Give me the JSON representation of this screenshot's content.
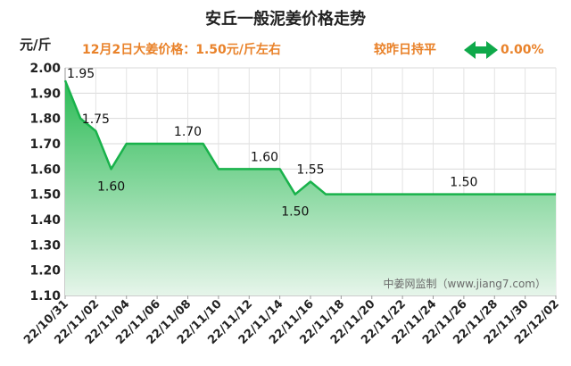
{
  "title": "安丘一般泥姜价格走势",
  "unit_label": "元/斤",
  "price_note": "12月2日大姜价格：1.50元/斤左右",
  "compare": {
    "label": "较昨日持平",
    "percent": "0.00%",
    "icon": "double-arrow-icon"
  },
  "watermark": "中姜网监制（www.jiang7.com）",
  "colors": {
    "accent_orange": "#e9822a",
    "line_green": "#19b24b",
    "arrow_green": "#0fa94a",
    "title": "#222222"
  },
  "chart_data": {
    "type": "area",
    "title": "安丘一般泥姜价格走势",
    "ylabel": "元/斤",
    "xlabel": "",
    "ylim": [
      1.1,
      2.0
    ],
    "y_ticks": [
      "1.10",
      "1.20",
      "1.30",
      "1.40",
      "1.50",
      "1.60",
      "1.70",
      "1.80",
      "1.90",
      "2.00"
    ],
    "x_ticks": [
      "22/10/31",
      "22/11/02",
      "22/11/04",
      "22/11/06",
      "22/11/08",
      "22/11/10",
      "22/11/12",
      "22/11/14",
      "22/11/16",
      "22/11/18",
      "22/11/20",
      "22/11/22",
      "22/11/24",
      "22/11/26",
      "22/11/28",
      "22/11/30",
      "22/12/02"
    ],
    "x": [
      "22/10/31",
      "22/11/01",
      "22/11/02",
      "22/11/03",
      "22/11/04",
      "22/11/05",
      "22/11/06",
      "22/11/07",
      "22/11/08",
      "22/11/09",
      "22/11/10",
      "22/11/11",
      "22/11/12",
      "22/11/13",
      "22/11/14",
      "22/11/15",
      "22/11/16",
      "22/11/17",
      "22/11/18",
      "22/11/19",
      "22/11/20",
      "22/11/21",
      "22/11/22",
      "22/11/23",
      "22/11/24",
      "22/11/25",
      "22/11/26",
      "22/11/27",
      "22/11/28",
      "22/11/29",
      "22/11/30",
      "22/12/01",
      "22/12/02"
    ],
    "values": [
      1.95,
      1.8,
      1.75,
      1.6,
      1.7,
      1.7,
      1.7,
      1.7,
      1.7,
      1.7,
      1.6,
      1.6,
      1.6,
      1.6,
      1.6,
      1.5,
      1.55,
      1.5,
      1.5,
      1.5,
      1.5,
      1.5,
      1.5,
      1.5,
      1.5,
      1.5,
      1.5,
      1.5,
      1.5,
      1.5,
      1.5,
      1.5,
      1.5
    ],
    "data_labels": [
      {
        "x": "22/10/31",
        "text": "1.95",
        "pos": "right"
      },
      {
        "x": "22/11/02",
        "text": "1.75",
        "pos": "above"
      },
      {
        "x": "22/11/03",
        "text": "1.60",
        "pos": "below"
      },
      {
        "x": "22/11/08",
        "text": "1.70",
        "pos": "above"
      },
      {
        "x": "22/11/13",
        "text": "1.60",
        "pos": "above"
      },
      {
        "x": "22/11/15",
        "text": "1.50",
        "pos": "below"
      },
      {
        "x": "22/11/16",
        "text": "1.55",
        "pos": "above"
      },
      {
        "x": "22/11/26",
        "text": "1.50",
        "pos": "above"
      }
    ]
  }
}
